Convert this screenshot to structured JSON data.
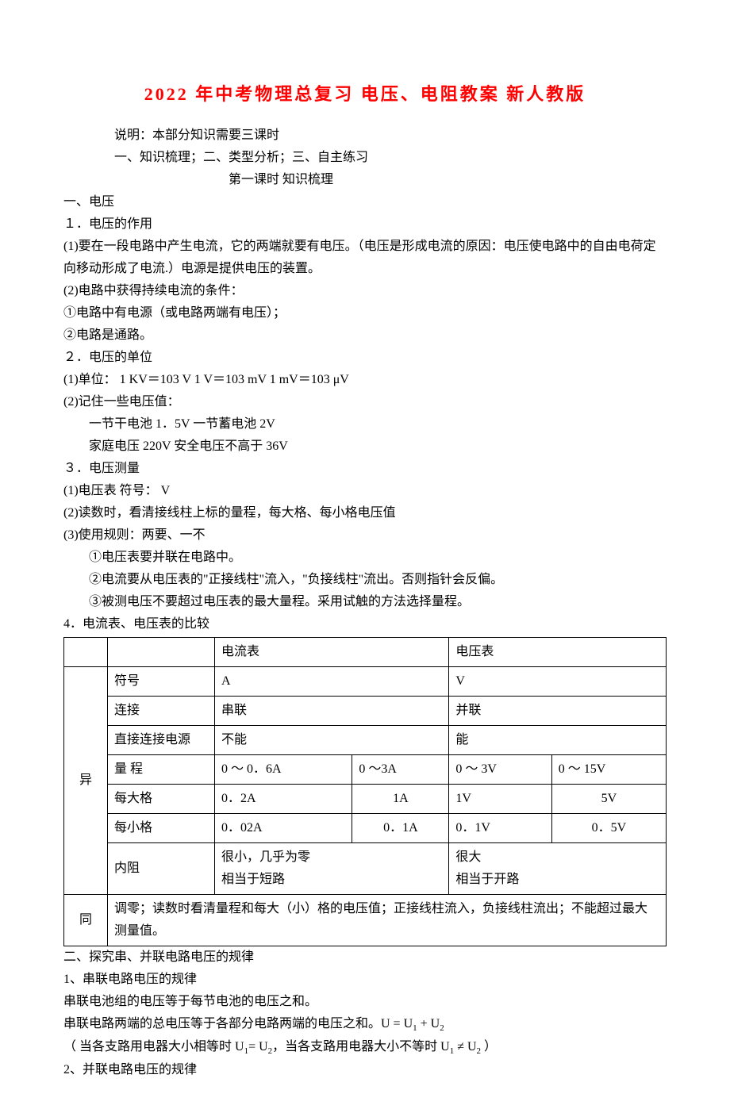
{
  "title": "2022 年中考物理总复习  电压、电阻教案  新人教版",
  "intro": {
    "line1": "说明：本部分知识需要三课时",
    "line2": "一、知识梳理；二、类型分析；三、自主练习",
    "line3": "第一课时    知识梳理"
  },
  "s1": {
    "heading": "一、电压",
    "h1": "１．电压的作用",
    "p1": "(1)要在一段电路中产生电流，它的两端就要有电压。（电压是形成电流的原因：电压使电路中的自由电荷定向移动形成了电流.）电源是提供电压的装置。",
    "p2": "(2)电路中获得持续电流的条件：",
    "p3": "①电路中有电源（或电路两端有电压）；",
    "p4": "②电路是通路。",
    "h2": "２．电压的单位",
    "p5": "(1)单位： 1 KV＝103 V    1 V＝103 mV    1 mV＝103 μV",
    "p6": "(2)记住一些电压值：",
    "p7": "一节干电池 1．5V         一节蓄电池 2V",
    "p8": "家庭电压 220V          安全电压不高于 36V",
    "h3": "３．电压测量",
    "p9": "(1)电压表 符号： V",
    "p10": "(2)读数时，看清接线柱上标的量程，每大格、每小格电压值",
    "p11": "(3)使用规则：两要、一不",
    "p12": "①电压表要并联在电路中。",
    "p13": "②电流要从电压表的\"正接线柱\"流入，\"负接线柱\"流出。否则指针会反偏。",
    "p14": "③被测电压不要超过电压表的最大量程。采用试触的方法选择量程。",
    "h4": "4．电流表、电压表的比较"
  },
  "table": {
    "hdr_a": "电流表",
    "hdr_v": "电压表",
    "cat_diff": "异",
    "cat_same": "同",
    "r1_label": "符号",
    "r1_a": "A",
    "r1_v": "V",
    "r2_label": "连接",
    "r2_a": "串联",
    "r2_v": "并联",
    "r3_label": "直接连接电源",
    "r3_a": "不能",
    "r3_v": "能",
    "r4_label": "量  程",
    "r4_a1": "0 ～ 0．6A",
    "r4_a2": "0 ～3A",
    "r4_v1": "0 ～ 3V",
    "r4_v2": "0 ～ 15V",
    "r5_label": "每大格",
    "r5_a1": "0．2A",
    "r5_a2": "1A",
    "r5_v1": "1V",
    "r5_v2": "5V",
    "r6_label": "每小格",
    "r6_a1": "0．02A",
    "r6_a2": "0．1A",
    "r6_v1": "0．1V",
    "r6_v2": "0．5V",
    "r7_label": "内阻",
    "r7_a_l1": "很小，几乎为零",
    "r7_a_l2": "相当于短路",
    "r7_v_l1": "很大",
    "r7_v_l2": "相当于开路",
    "same_text": "调零；读数时看清量程和每大（小）格的电压值；正接线柱流入，负接线柱流出；不能超过最大测量值。"
  },
  "s2": {
    "heading": "二、探究串、并联电路电压的规律",
    "h1": "1、串联电路电压的规律",
    "p1": "串联电池组的电压等于每节电池的电压之和。",
    "p2_pre": "串联电路两端的总电压等于各部分电路两端的电压之和。U = U",
    "p2_mid": " + U",
    "p3_pre": "（ 当各支路用电器大小相等时 U",
    "p3_mid": "= U",
    "p3_mid2": "，当各支路用电器大小不等时 U",
    "p3_mid3": " ≠ U",
    "p3_end": "  ）",
    "h2": "2、并联电路电压的规律"
  }
}
